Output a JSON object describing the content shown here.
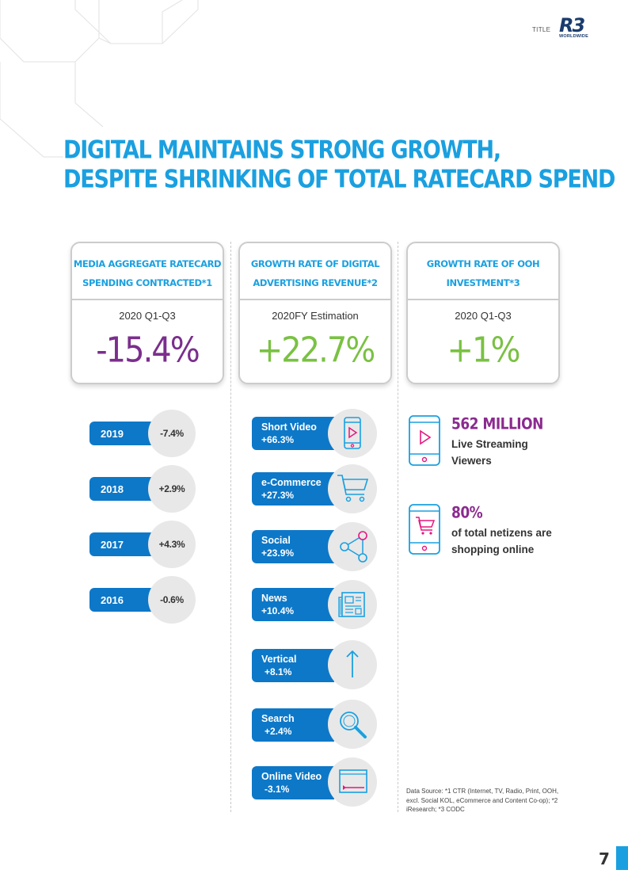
{
  "header": {
    "title_label": "TITLE",
    "logo_text": "R3",
    "logo_sub": "WORLDWIDE"
  },
  "headline": {
    "line1": "DIGITAL MAINTAINS STRONG GROWTH,",
    "line2": "DESPITE SHRINKING OF TOTAL RATECARD SPEND"
  },
  "cards": [
    {
      "title1": "MEDIA AGGREGATE RATECARD",
      "title2": "SPENDING CONTRACTED*1",
      "period": "2020 Q1-Q3",
      "value": "-15.4%",
      "color": "#7b2e8d"
    },
    {
      "title1": "GROWTH RATE OF DIGITAL",
      "title2": "ADVERTISING REVENUE*2",
      "period": "2020FY  Estimation",
      "value": "+22.7%",
      "color": "#7ac143"
    },
    {
      "title1": "GROWTH RATE OF OOH",
      "title2": "INVESTMENT*3",
      "period": "2020 Q1-Q3",
      "value": "+1%",
      "color": "#7ac143"
    }
  ],
  "years": [
    {
      "year": "2019",
      "value": "-7.4%"
    },
    {
      "year": "2018",
      "value": "+2.9%"
    },
    {
      "year": "2017",
      "value": "+4.3%"
    },
    {
      "year": "2016",
      "value": "-0.6%"
    }
  ],
  "categories": [
    {
      "name": "Short Video",
      "value": "+66.3%",
      "icon": "phone-play-icon"
    },
    {
      "name": "e-Commerce",
      "value": "+27.3%",
      "icon": "cart-icon"
    },
    {
      "name": "Social",
      "value": "+23.9%",
      "icon": "share-icon"
    },
    {
      "name": "News",
      "value": "+10.4%",
      "icon": "newspaper-icon"
    },
    {
      "name": "Vertical",
      "value": "+8.1%",
      "icon": "arrow-up-icon"
    },
    {
      "name": "Search",
      "value": "+2.4%",
      "icon": "magnifier-icon"
    },
    {
      "name": "Online Video",
      "value": "-3.1%",
      "icon": "video-player-icon"
    }
  ],
  "stats": [
    {
      "number": "562 MILLION",
      "line1": "Live Streaming",
      "line2": "Viewers",
      "icon": "phone-play-icon"
    },
    {
      "number": "80%",
      "line1": "of total netizens are",
      "line2": "shopping online",
      "icon": "phone-cart-icon"
    }
  ],
  "source": "Data Source: *1 CTR (Internet, TV, Radio, Print, OOH, excl. Social KOL, eCommerce and Content Co-op); *2 iResearch; *3 CODC",
  "page_number": "7",
  "colors": {
    "accent": "#1aa0e0",
    "pill": "#0d78c8",
    "purple": "#7b2e8d",
    "green": "#7ac143",
    "pink": "#e6177e"
  }
}
